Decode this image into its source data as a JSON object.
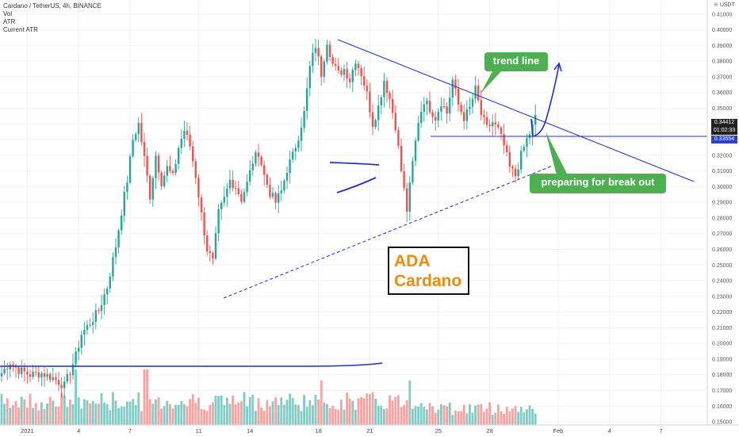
{
  "header": {
    "title": "Cardano / TetherUS, 4h, BINANCE",
    "indicators": [
      "Vol",
      "ATR",
      "Current ATR"
    ]
  },
  "price_axis": {
    "unit_label": "USDT",
    "current_price": "0.34412",
    "countdown": "01:02:33",
    "level_tag": "0.33554"
  },
  "annotations": {
    "trend_label": "trend line",
    "breakout_label": "preparing for break out",
    "ticker": "ADA",
    "name": "Cardano"
  },
  "colors": {
    "up": "#26a69a",
    "down": "#ef5350",
    "vol_up": "#80cbc4",
    "vol_down": "#f4a3a3",
    "drawing": "#1d2fd0",
    "callout": "#4caf50",
    "ada_text": "#f28a0a",
    "price_tag": "#222222",
    "level_tag": "#2545c8"
  },
  "chart_data": {
    "type": "candlestick",
    "title": "Cardano / TetherUS, 4h, BINANCE",
    "y_range": [
      0.148,
      0.419
    ],
    "y_ticks": [
      0.15,
      0.16,
      0.17,
      0.18,
      0.19,
      0.2,
      0.21,
      0.22,
      0.23,
      0.24,
      0.25,
      0.26,
      0.27,
      0.28,
      0.29,
      0.3,
      0.31,
      0.32,
      0.33,
      0.34,
      0.35,
      0.36,
      0.37,
      0.38,
      0.39,
      0.4,
      0.41
    ],
    "x_ticks": [
      {
        "label": "2021",
        "index": 9
      },
      {
        "label": "4",
        "index": 27
      },
      {
        "label": "7",
        "index": 45
      },
      {
        "label": "11",
        "index": 69
      },
      {
        "label": "14",
        "index": 87
      },
      {
        "label": "18",
        "index": 111
      },
      {
        "label": "21",
        "index": 129
      },
      {
        "label": "25",
        "index": 153
      },
      {
        "label": "28",
        "index": 171
      },
      {
        "label": "Feb",
        "index": 195
      },
      {
        "label": "4",
        "index": 213
      },
      {
        "label": "7",
        "index": 231
      }
    ],
    "anchors": [
      [
        0,
        0.181
      ],
      [
        3,
        0.188
      ],
      [
        6,
        0.183
      ],
      [
        10,
        0.18
      ],
      [
        14,
        0.181
      ],
      [
        18,
        0.178
      ],
      [
        22,
        0.173
      ],
      [
        24,
        0.182
      ],
      [
        26,
        0.192
      ],
      [
        28,
        0.206
      ],
      [
        31,
        0.213
      ],
      [
        34,
        0.221
      ],
      [
        37,
        0.236
      ],
      [
        40,
        0.262
      ],
      [
        42,
        0.284
      ],
      [
        44,
        0.304
      ],
      [
        46,
        0.33
      ],
      [
        48,
        0.34
      ],
      [
        50,
        0.318
      ],
      [
        52,
        0.294
      ],
      [
        54,
        0.32
      ],
      [
        56,
        0.303
      ],
      [
        58,
        0.312
      ],
      [
        60,
        0.306
      ],
      [
        62,
        0.325
      ],
      [
        64,
        0.336
      ],
      [
        66,
        0.326
      ],
      [
        68,
        0.307
      ],
      [
        70,
        0.282
      ],
      [
        72,
        0.26
      ],
      [
        74,
        0.252
      ],
      [
        76,
        0.283
      ],
      [
        78,
        0.292
      ],
      [
        80,
        0.304
      ],
      [
        82,
        0.3
      ],
      [
        84,
        0.292
      ],
      [
        86,
        0.302
      ],
      [
        88,
        0.316
      ],
      [
        90,
        0.322
      ],
      [
        92,
        0.307
      ],
      [
        94,
        0.296
      ],
      [
        96,
        0.29
      ],
      [
        98,
        0.297
      ],
      [
        100,
        0.311
      ],
      [
        102,
        0.32
      ],
      [
        104,
        0.332
      ],
      [
        106,
        0.347
      ],
      [
        108,
        0.376
      ],
      [
        110,
        0.39
      ],
      [
        112,
        0.372
      ],
      [
        114,
        0.393
      ],
      [
        116,
        0.378
      ],
      [
        118,
        0.372
      ],
      [
        120,
        0.375
      ],
      [
        122,
        0.368
      ],
      [
        124,
        0.381
      ],
      [
        126,
        0.372
      ],
      [
        128,
        0.359
      ],
      [
        130,
        0.34
      ],
      [
        132,
        0.351
      ],
      [
        134,
        0.368
      ],
      [
        136,
        0.356
      ],
      [
        138,
        0.339
      ],
      [
        140,
        0.31
      ],
      [
        142,
        0.285
      ],
      [
        144,
        0.315
      ],
      [
        146,
        0.342
      ],
      [
        148,
        0.355
      ],
      [
        150,
        0.35
      ],
      [
        152,
        0.344
      ],
      [
        154,
        0.354
      ],
      [
        156,
        0.347
      ],
      [
        158,
        0.368
      ],
      [
        160,
        0.352
      ],
      [
        162,
        0.344
      ],
      [
        164,
        0.35
      ],
      [
        166,
        0.362
      ],
      [
        168,
        0.346
      ],
      [
        170,
        0.337
      ],
      [
        172,
        0.341
      ],
      [
        174,
        0.336
      ],
      [
        176,
        0.326
      ],
      [
        178,
        0.312
      ],
      [
        180,
        0.307
      ],
      [
        182,
        0.32
      ],
      [
        184,
        0.33
      ],
      [
        186,
        0.338
      ],
      [
        187,
        0.344
      ]
    ],
    "volume_range": [
      0,
      1
    ]
  }
}
